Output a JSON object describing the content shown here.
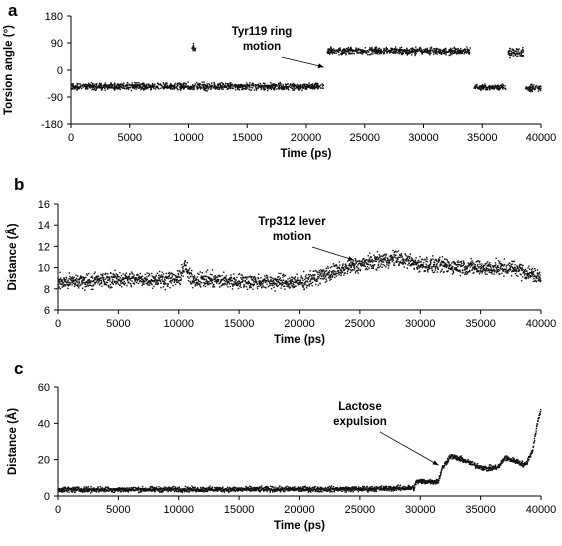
{
  "chart_data": [
    {
      "type": "scatter",
      "panel_label": "a",
      "xlabel": "Time (ps)",
      "ylabel": "Torsion angle (°)",
      "xlim": [
        0,
        40000
      ],
      "ylim": [
        -180,
        180
      ],
      "xticks": [
        "0",
        "5000",
        "10000",
        "15000",
        "20000",
        "25000",
        "30000",
        "35000",
        "40000"
      ],
      "yticks": [
        "-180",
        "-90",
        "0",
        "90",
        "180"
      ],
      "annotation": {
        "lines": [
          "Tyr119 ring",
          "motion"
        ],
        "arrow_to": [
          21500,
          10
        ]
      },
      "series": [
        {
          "segments": [
            {
              "x": [
                0,
                21500
              ],
              "y": -55,
              "spread": 8
            },
            {
              "x": [
                10300,
                10600
              ],
              "y": 75,
              "spread": 10
            },
            {
              "x": [
                21800,
                34000
              ],
              "y": 63,
              "spread": 8
            },
            {
              "x": [
                34300,
                37000
              ],
              "y": -58,
              "spread": 6
            },
            {
              "x": [
                37200,
                38500
              ],
              "y": 58,
              "spread": 10
            },
            {
              "x": [
                38700,
                40000
              ],
              "y": -60,
              "spread": 8
            }
          ]
        }
      ]
    },
    {
      "type": "scatter",
      "panel_label": "b",
      "xlabel": "Time (ps)",
      "ylabel": "Distance (Å)",
      "xlim": [
        0,
        40000
      ],
      "ylim": [
        6,
        16
      ],
      "xticks": [
        "0",
        "5000",
        "10000",
        "15000",
        "20000",
        "25000",
        "30000",
        "35000",
        "40000"
      ],
      "yticks": [
        "6",
        "8",
        "10",
        "12",
        "14",
        "16"
      ],
      "annotation": {
        "lines": [
          "Trp312 lever",
          "motion"
        ],
        "arrow_to": [
          24500,
          10.7
        ]
      },
      "series": [
        {
          "trend": [
            [
              0,
              8.6
            ],
            [
              5000,
              8.9
            ],
            [
              10000,
              8.9
            ],
            [
              10500,
              10.2
            ],
            [
              11000,
              8.9
            ],
            [
              15000,
              8.7
            ],
            [
              20000,
              8.6
            ],
            [
              22000,
              9.3
            ],
            [
              25000,
              10.3
            ],
            [
              28000,
              10.9
            ],
            [
              30000,
              10.3
            ],
            [
              35000,
              10.0
            ],
            [
              38000,
              9.9
            ],
            [
              40000,
              9.0
            ]
          ],
          "spread": 0.5
        }
      ]
    },
    {
      "type": "scatter",
      "panel_label": "c",
      "xlabel": "Time (ps)",
      "ylabel": "Distance (Å)",
      "xlim": [
        0,
        40000
      ],
      "ylim": [
        0,
        60
      ],
      "xticks": [
        "0",
        "5000",
        "10000",
        "15000",
        "20000",
        "25000",
        "30000",
        "35000",
        "40000"
      ],
      "yticks": [
        "0",
        "20",
        "40",
        "60"
      ],
      "annotation": {
        "lines": [
          "Lactose",
          "expulsion"
        ],
        "arrow_to": [
          31500,
          17
        ]
      },
      "series": [
        {
          "trend": [
            [
              0,
              3.5
            ],
            [
              25000,
              3.8
            ],
            [
              29500,
              4.5
            ],
            [
              29700,
              8
            ],
            [
              31500,
              8
            ],
            [
              31800,
              15
            ],
            [
              32500,
              22
            ],
            [
              33500,
              20
            ],
            [
              34500,
              17
            ],
            [
              35500,
              15
            ],
            [
              36500,
              16
            ],
            [
              37000,
              21
            ],
            [
              38000,
              19
            ],
            [
              38700,
              17
            ],
            [
              39300,
              25
            ],
            [
              39700,
              40
            ],
            [
              40000,
              48
            ]
          ],
          "spread": 1.0
        }
      ]
    }
  ]
}
